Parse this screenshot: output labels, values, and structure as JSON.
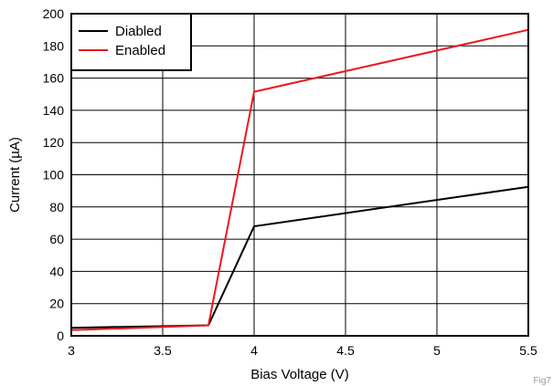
{
  "chart_data": {
    "type": "line",
    "xlabel": "Bias Voltage (V)",
    "ylabel": "Current (µA)",
    "xlim": [
      3,
      5.5
    ],
    "ylim": [
      0,
      200
    ],
    "xticks": [
      3,
      3.5,
      4,
      4.5,
      5,
      5.5
    ],
    "xtick_labels": [
      "3",
      "3.5",
      "4",
      "4.5",
      "5",
      "5.5"
    ],
    "yticks": [
      0,
      20,
      40,
      60,
      80,
      100,
      120,
      140,
      160,
      180,
      200
    ],
    "ytick_labels": [
      "0",
      "20",
      "40",
      "60",
      "80",
      "100",
      "120",
      "140",
      "160",
      "180",
      "200"
    ],
    "grid": true,
    "legend_position": "top-left",
    "series": [
      {
        "name": "Diabled",
        "color": "#000000",
        "x": [
          3,
          3.75,
          4,
          5.5
        ],
        "y": [
          5,
          6.5,
          68,
          92.5
        ]
      },
      {
        "name": "Enabled",
        "color": "#e8181e",
        "x": [
          3,
          3.75,
          4,
          5.5
        ],
        "y": [
          3.5,
          6.5,
          151.5,
          190
        ]
      }
    ]
  },
  "figure_label": "Fig7"
}
